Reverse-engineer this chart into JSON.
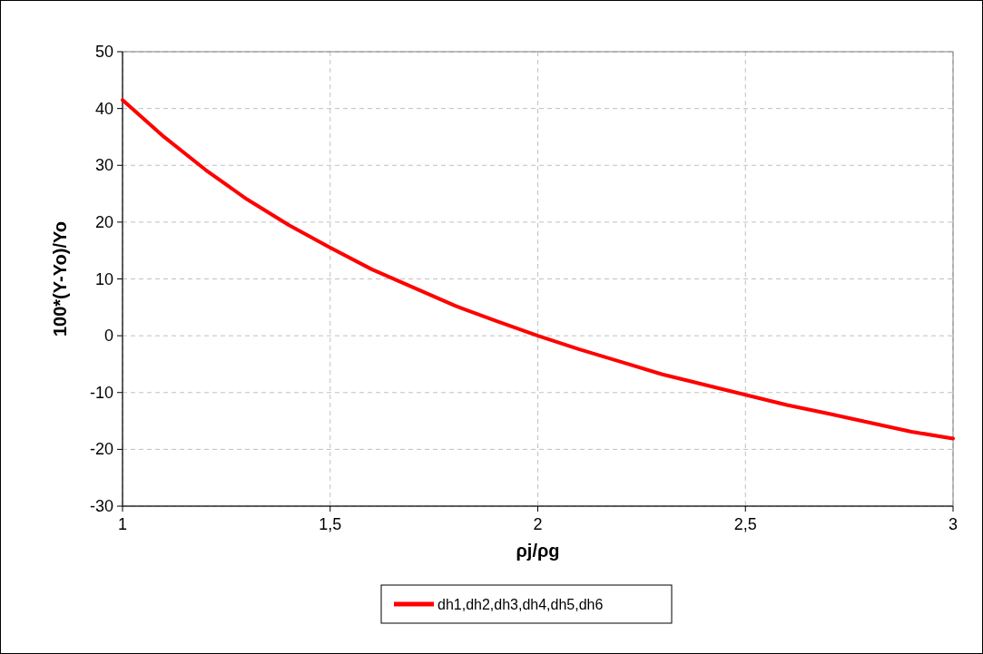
{
  "chart_data": {
    "type": "line",
    "xlabel": "ρj/ρg",
    "ylabel": "100*(Y-Yo)/Yo",
    "x": [
      1,
      1.1,
      1.2,
      1.3,
      1.4,
      1.5,
      1.6,
      1.7,
      1.8,
      1.9,
      2,
      2.1,
      2.2,
      2.3,
      2.4,
      2.5,
      2.6,
      2.7,
      2.8,
      2.9,
      3
    ],
    "series": [
      {
        "name": "dh1,dh2,dh3,dh4,dh5,dh6",
        "color": "#ff0000",
        "values": [
          41.5,
          35,
          29.2,
          24,
          19.5,
          15.5,
          11.7,
          8.5,
          5.3,
          2.6,
          0,
          -2.4,
          -4.6,
          -6.8,
          -8.6,
          -10.4,
          -12.2,
          -13.7,
          -15.3,
          -16.9,
          -18.1
        ]
      }
    ],
    "xlim": [
      1,
      3
    ],
    "xticks": [
      1,
      {
        "value": 1.5,
        "label": "1,5"
      },
      2,
      {
        "value": 2.5,
        "label": "2,5"
      },
      3
    ],
    "ylim": [
      -30,
      50
    ],
    "yticks": [
      -30,
      -20,
      -10,
      0,
      10,
      20,
      30,
      40,
      50
    ],
    "grid": true,
    "legend": "bottom",
    "marker": "none",
    "line_style": "solid"
  }
}
